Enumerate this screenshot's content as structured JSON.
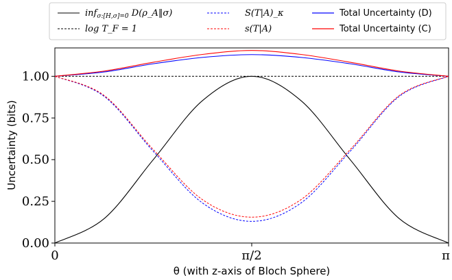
{
  "chart_data": {
    "type": "line",
    "xlabel": "θ (with z-axis of Bloch Sphere)",
    "ylabel": "Uncertainty (bits)",
    "xlim": [
      0,
      3.14159
    ],
    "ylim": [
      0,
      1.17
    ],
    "x_ticks": [
      {
        "value": 0,
        "label": "0"
      },
      {
        "value": 1.5708,
        "label": "π/2"
      },
      {
        "value": 3.14159,
        "label": "π"
      }
    ],
    "y_ticks": [
      {
        "value": 0.0,
        "label": "0.00"
      },
      {
        "value": 0.25,
        "label": "0.25"
      },
      {
        "value": 0.5,
        "label": "0.50"
      },
      {
        "value": 0.75,
        "label": "0.75"
      },
      {
        "value": 1.0,
        "label": "1.00"
      }
    ],
    "grid": false,
    "legend_position": "top, outside plot area (3 columns)",
    "x": [
      0,
      0.3927,
      0.7854,
      1.1781,
      1.5708,
      1.9635,
      2.3562,
      2.7489,
      3.14159
    ],
    "series": [
      {
        "name": "inf_{σ:[H,σ]=0} D(ρ_A‖σ)",
        "color": "#000000",
        "dash": "solid",
        "values": [
          0.0,
          0.146,
          0.5,
          0.854,
          1.0,
          0.854,
          0.5,
          0.146,
          0.0
        ]
      },
      {
        "name": "log T_F = 1",
        "color": "#000000",
        "dash": "dashed",
        "values": [
          1.0,
          1.0,
          1.0,
          1.0,
          1.0,
          1.0,
          1.0,
          1.0,
          1.0
        ]
      },
      {
        "name": "S(T|A)_κ",
        "color": "#0000ff",
        "dash": "dashed",
        "values": [
          1.0,
          0.88,
          0.55,
          0.24,
          0.13,
          0.24,
          0.55,
          0.88,
          1.0
        ]
      },
      {
        "name": "s(T|A)",
        "color": "#ff0000",
        "dash": "dashed",
        "values": [
          1.0,
          0.885,
          0.56,
          0.26,
          0.155,
          0.26,
          0.56,
          0.885,
          1.0
        ]
      },
      {
        "name": "Total Uncertainty (D)",
        "color": "#0000ff",
        "dash": "solid",
        "values": [
          1.0,
          1.026,
          1.075,
          1.113,
          1.13,
          1.113,
          1.075,
          1.026,
          1.0
        ]
      },
      {
        "name": "Total Uncertainty (C)",
        "color": "#ff0000",
        "dash": "solid",
        "values": [
          1.0,
          1.031,
          1.084,
          1.131,
          1.155,
          1.131,
          1.084,
          1.031,
          1.0
        ]
      }
    ]
  },
  "legend": {
    "items": [
      {
        "key": "inf",
        "label_main": "inf",
        "label_sub": "σ:[H,σ]=0",
        "label_rest": " D(ρ_A‖σ)",
        "math": true
      },
      {
        "key": "logtf",
        "label": "log T_F = 1",
        "math": true
      },
      {
        "key": "skappa",
        "label": "S(T|A)_κ",
        "math": true
      },
      {
        "key": "s",
        "label": "s(T|A)",
        "math": true
      },
      {
        "key": "totd",
        "label": "Total Uncertainty (D)",
        "math": false
      },
      {
        "key": "totc",
        "label": "Total Uncertainty (C)",
        "math": false
      }
    ]
  }
}
